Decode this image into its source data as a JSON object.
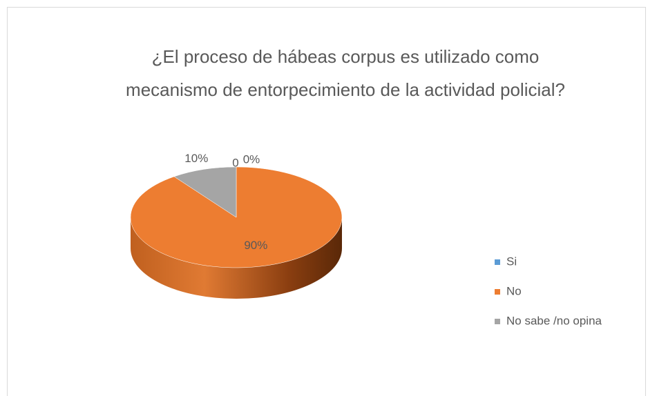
{
  "chart_data": {
    "type": "pie",
    "title": [
      "¿El proceso de hábeas corpus es utilizado como",
      "mecanismo de entorpecimiento de la actividad policial?"
    ],
    "categories": [
      "Si",
      "No",
      "No sabe /no opina"
    ],
    "values": [
      0,
      90,
      10
    ],
    "value_labels": [
      "0%",
      "90%",
      "10%"
    ],
    "colors": [
      "#5b9bd5",
      "#ed7d31",
      "#a5a5a5"
    ],
    "annotations": [
      "0"
    ],
    "legend": "right"
  }
}
